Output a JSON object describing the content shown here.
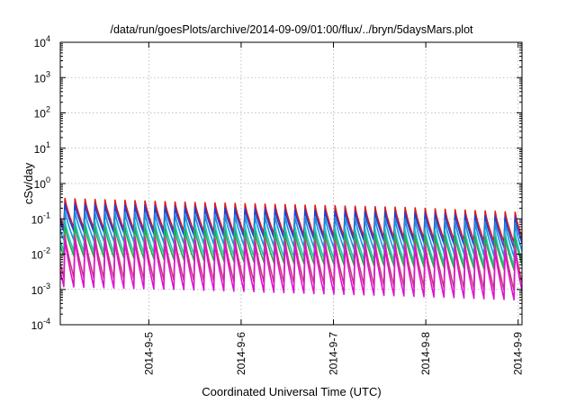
{
  "chart_data": {
    "type": "line",
    "title": "/data/run/goesPlots/archive/2014-09-09/01:00/flux/../bryn/5daysMars.plot",
    "xlabel": "Coordinated Universal Time (UTC)",
    "ylabel": "cSv/day",
    "yscale": "log",
    "ylim": [
      0.0001,
      10000
    ],
    "xlim": [
      "2014-09-04T01:00",
      "2014-09-09T01:00"
    ],
    "grid": true,
    "y_ticks": [
      {
        "value": 0.0001,
        "base": "10",
        "exp": "-4"
      },
      {
        "value": 0.001,
        "base": "10",
        "exp": "-3"
      },
      {
        "value": 0.01,
        "base": "10",
        "exp": "-2"
      },
      {
        "value": 0.1,
        "base": "10",
        "exp": "-1"
      },
      {
        "value": 1,
        "base": "10",
        "exp": "0"
      },
      {
        "value": 10,
        "base": "10",
        "exp": "1"
      },
      {
        "value": 100,
        "base": "10",
        "exp": "2"
      },
      {
        "value": 1000,
        "base": "10",
        "exp": "3"
      },
      {
        "value": 10000,
        "base": "10",
        "exp": "4"
      }
    ],
    "x_ticks": [
      "2014-9-5",
      "2014-9-6",
      "2014-9-7",
      "2014-9-8",
      "2014-9-9"
    ],
    "x_tick_times": [
      "2014-09-05T00:00",
      "2014-09-06T00:00",
      "2014-09-07T00:00",
      "2014-09-08T00:00",
      "2014-09-09T00:00"
    ],
    "sawtooth_period_hours": 2.6,
    "series": [
      {
        "color": "#d81a1a",
        "peaks": [
          0.38,
          0.3,
          0.25,
          0.21,
          0.15
        ],
        "troughs": [
          0.055,
          0.045,
          0.035,
          0.028,
          0.02
        ]
      },
      {
        "color": "#1f3fd6",
        "peaks": [
          0.27,
          0.22,
          0.18,
          0.15,
          0.11
        ],
        "troughs": [
          0.045,
          0.035,
          0.028,
          0.022,
          0.014
        ]
      },
      {
        "color": "#1c8fe0",
        "peaks": [
          0.17,
          0.14,
          0.12,
          0.1,
          0.075
        ],
        "troughs": [
          0.025,
          0.02,
          0.016,
          0.012,
          0.008
        ]
      },
      {
        "color": "#1fc4c4",
        "peaks": [
          0.09,
          0.075,
          0.06,
          0.05,
          0.04
        ],
        "troughs": [
          0.012,
          0.01,
          0.008,
          0.006,
          0.0045
        ]
      },
      {
        "color": "#2aa84a",
        "peaks": [
          0.06,
          0.05,
          0.04,
          0.035,
          0.028
        ],
        "troughs": [
          0.009,
          0.007,
          0.0055,
          0.0045,
          0.0035
        ]
      },
      {
        "color": "#c04070",
        "peaks": [
          0.035,
          0.03,
          0.026,
          0.022,
          0.017
        ],
        "troughs": [
          0.0022,
          0.0018,
          0.0015,
          0.0012,
          0.0009
        ]
      },
      {
        "color": "#e010d0",
        "peaks": [
          0.028,
          0.024,
          0.02,
          0.017,
          0.013
        ],
        "troughs": [
          0.0012,
          0.001,
          0.0008,
          0.00065,
          0.0005
        ]
      }
    ]
  }
}
